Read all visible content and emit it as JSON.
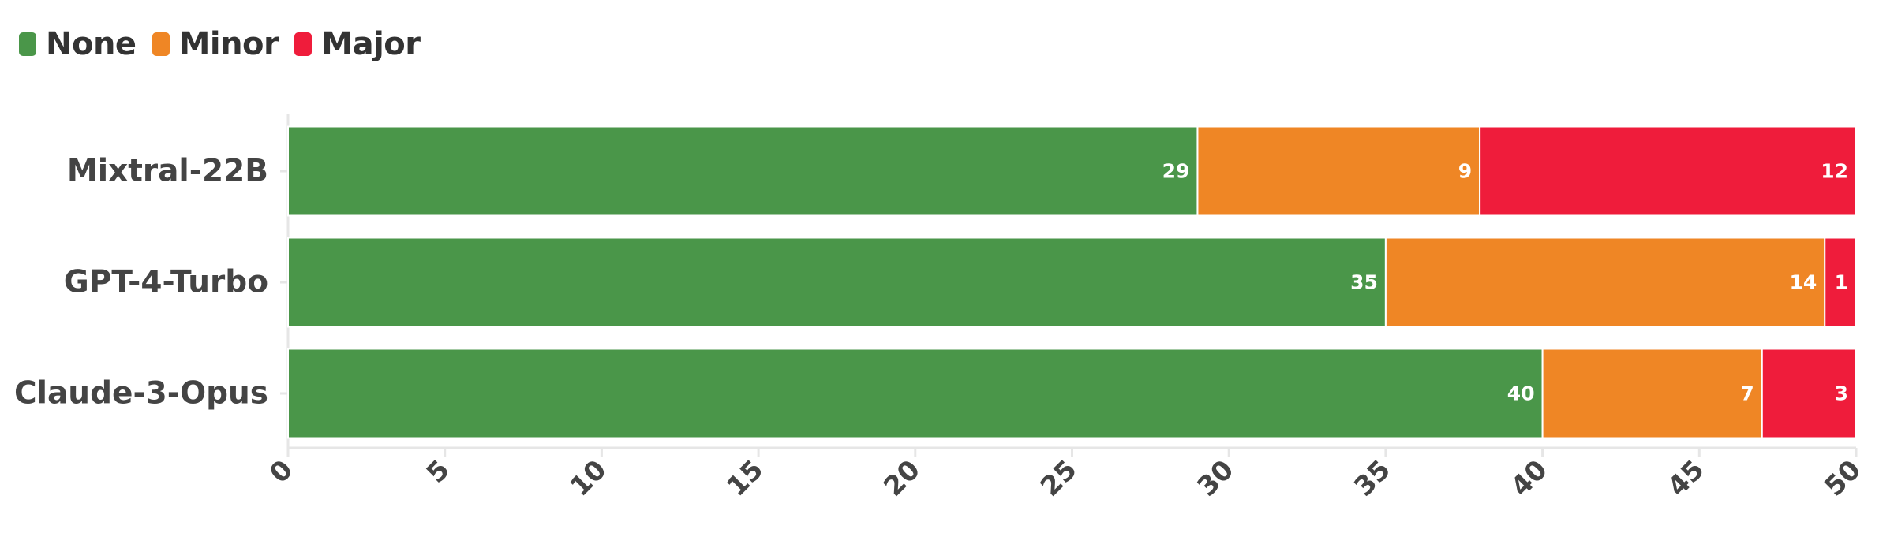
{
  "chart_data": {
    "type": "bar",
    "orientation": "horizontal",
    "stacked": true,
    "categories": [
      "Mixtral-22B",
      "GPT-4-Turbo",
      "Claude-3-Opus"
    ],
    "series": [
      {
        "name": "None",
        "color": "#4a9649",
        "values": [
          29,
          35,
          40
        ]
      },
      {
        "name": "Minor",
        "color": "#ef8625",
        "values": [
          9,
          14,
          7
        ]
      },
      {
        "name": "Major",
        "color": "#ef1c3b",
        "values": [
          12,
          1,
          3
        ]
      }
    ],
    "xlim": [
      0,
      50
    ],
    "xticks": [
      0,
      5,
      10,
      15,
      20,
      25,
      30,
      35,
      40,
      45,
      50
    ],
    "title": "",
    "xlabel": "",
    "ylabel": "",
    "legend": "top-left",
    "grid": false,
    "data_labels": true
  }
}
